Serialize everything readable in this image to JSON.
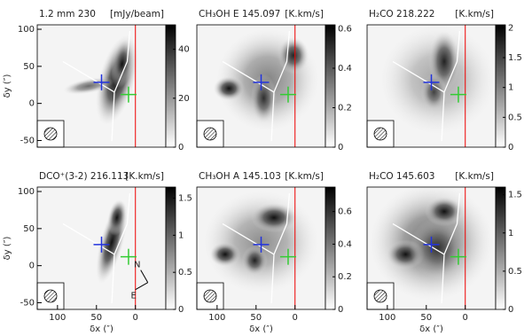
{
  "chart_data": [
    {
      "type": "image",
      "title": "1.2 mm 230",
      "unit": "[mJy/beam]",
      "xlim": [
        126,
        -39
      ],
      "ylim": [
        -59,
        106
      ],
      "yticks": [
        -50,
        0,
        50,
        100
      ],
      "ylabel": "δy (″)",
      "clim": [
        0,
        50
      ],
      "cticks": [
        0,
        20,
        40
      ]
    },
    {
      "type": "image",
      "title": "CH₃OH E 145.097",
      "unit": "[K.km/s]",
      "xlim": [
        126,
        -39
      ],
      "ylim": [
        -59,
        106
      ],
      "clim": [
        0,
        0.62
      ],
      "cticks": [
        0,
        0.2,
        0.4,
        0.6
      ]
    },
    {
      "type": "image",
      "title": "H₂CO 218.222",
      "unit": "[K.km/s]",
      "xlim": [
        126,
        -39
      ],
      "ylim": [
        -59,
        106
      ],
      "clim": [
        0,
        2.05
      ],
      "cticks": [
        0,
        0.5,
        1,
        1.5,
        2
      ]
    },
    {
      "type": "image",
      "title": "DCO⁺(3-2) 216.113",
      "unit": "[K.km/s]",
      "xlim": [
        126,
        -39
      ],
      "ylim": [
        -59,
        106
      ],
      "xticks": [
        100,
        50,
        0
      ],
      "yticks": [
        -50,
        0,
        50,
        100
      ],
      "xlabel": "δx (″)",
      "ylabel": "δy (″)",
      "clim": [
        0,
        1.65
      ],
      "cticks": [
        0,
        0.5,
        1,
        1.5
      ],
      "annotations": [
        "N",
        "E"
      ]
    },
    {
      "type": "image",
      "title": "CH₃OH A 145.103",
      "unit": "[K.km/s]",
      "xlim": [
        126,
        -39
      ],
      "ylim": [
        -59,
        106
      ],
      "xticks": [
        100,
        50,
        0
      ],
      "xlabel": "δx (″)",
      "clim": [
        0,
        0.75
      ],
      "cticks": [
        0,
        0.2,
        0.4,
        0.6
      ]
    },
    {
      "type": "image",
      "title": "H₂CO 145.603",
      "unit": "[K.km/s]",
      "xlim": [
        126,
        -39
      ],
      "ylim": [
        -59,
        106
      ],
      "xticks": [
        100,
        50,
        0
      ],
      "xlabel": "δx (″)",
      "clim": [
        0,
        1.6
      ],
      "cticks": [
        0,
        0.5,
        1,
        1.5
      ]
    }
  ]
}
